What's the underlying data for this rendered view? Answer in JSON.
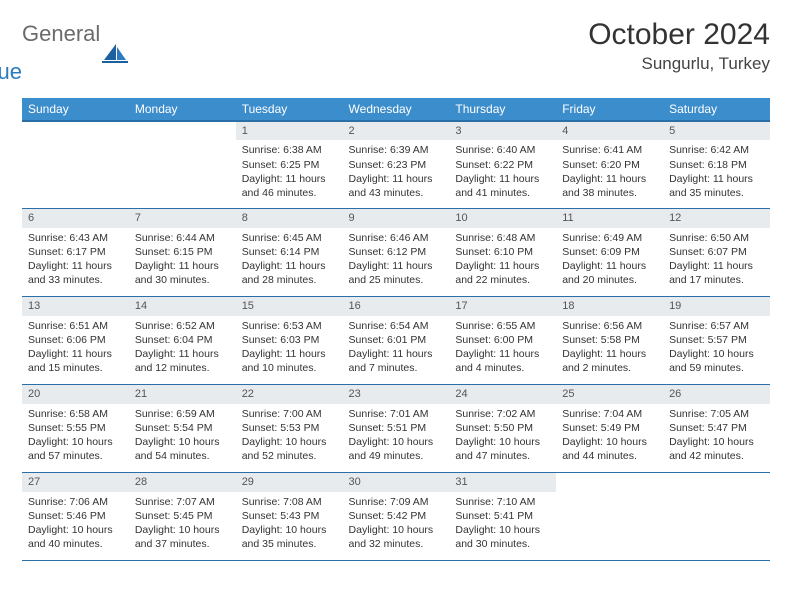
{
  "brand": {
    "part1": "General",
    "part2": "Blue"
  },
  "title": "October 2024",
  "location": "Sungurlu, Turkey",
  "colors": {
    "header_bg": "#3c8dcc",
    "header_border": "#2a6fa8",
    "daynum_bg": "#e8ebee",
    "text": "#333333",
    "brand_gray": "#6b6b6b",
    "brand_blue": "#2a7bbf"
  },
  "weekdays": [
    "Sunday",
    "Monday",
    "Tuesday",
    "Wednesday",
    "Thursday",
    "Friday",
    "Saturday"
  ],
  "startOffset": 2,
  "days": [
    {
      "n": 1,
      "sr": "6:38 AM",
      "ss": "6:25 PM",
      "dl": "11 hours and 46 minutes."
    },
    {
      "n": 2,
      "sr": "6:39 AM",
      "ss": "6:23 PM",
      "dl": "11 hours and 43 minutes."
    },
    {
      "n": 3,
      "sr": "6:40 AM",
      "ss": "6:22 PM",
      "dl": "11 hours and 41 minutes."
    },
    {
      "n": 4,
      "sr": "6:41 AM",
      "ss": "6:20 PM",
      "dl": "11 hours and 38 minutes."
    },
    {
      "n": 5,
      "sr": "6:42 AM",
      "ss": "6:18 PM",
      "dl": "11 hours and 35 minutes."
    },
    {
      "n": 6,
      "sr": "6:43 AM",
      "ss": "6:17 PM",
      "dl": "11 hours and 33 minutes."
    },
    {
      "n": 7,
      "sr": "6:44 AM",
      "ss": "6:15 PM",
      "dl": "11 hours and 30 minutes."
    },
    {
      "n": 8,
      "sr": "6:45 AM",
      "ss": "6:14 PM",
      "dl": "11 hours and 28 minutes."
    },
    {
      "n": 9,
      "sr": "6:46 AM",
      "ss": "6:12 PM",
      "dl": "11 hours and 25 minutes."
    },
    {
      "n": 10,
      "sr": "6:48 AM",
      "ss": "6:10 PM",
      "dl": "11 hours and 22 minutes."
    },
    {
      "n": 11,
      "sr": "6:49 AM",
      "ss": "6:09 PM",
      "dl": "11 hours and 20 minutes."
    },
    {
      "n": 12,
      "sr": "6:50 AM",
      "ss": "6:07 PM",
      "dl": "11 hours and 17 minutes."
    },
    {
      "n": 13,
      "sr": "6:51 AM",
      "ss": "6:06 PM",
      "dl": "11 hours and 15 minutes."
    },
    {
      "n": 14,
      "sr": "6:52 AM",
      "ss": "6:04 PM",
      "dl": "11 hours and 12 minutes."
    },
    {
      "n": 15,
      "sr": "6:53 AM",
      "ss": "6:03 PM",
      "dl": "11 hours and 10 minutes."
    },
    {
      "n": 16,
      "sr": "6:54 AM",
      "ss": "6:01 PM",
      "dl": "11 hours and 7 minutes."
    },
    {
      "n": 17,
      "sr": "6:55 AM",
      "ss": "6:00 PM",
      "dl": "11 hours and 4 minutes."
    },
    {
      "n": 18,
      "sr": "6:56 AM",
      "ss": "5:58 PM",
      "dl": "11 hours and 2 minutes."
    },
    {
      "n": 19,
      "sr": "6:57 AM",
      "ss": "5:57 PM",
      "dl": "10 hours and 59 minutes."
    },
    {
      "n": 20,
      "sr": "6:58 AM",
      "ss": "5:55 PM",
      "dl": "10 hours and 57 minutes."
    },
    {
      "n": 21,
      "sr": "6:59 AM",
      "ss": "5:54 PM",
      "dl": "10 hours and 54 minutes."
    },
    {
      "n": 22,
      "sr": "7:00 AM",
      "ss": "5:53 PM",
      "dl": "10 hours and 52 minutes."
    },
    {
      "n": 23,
      "sr": "7:01 AM",
      "ss": "5:51 PM",
      "dl": "10 hours and 49 minutes."
    },
    {
      "n": 24,
      "sr": "7:02 AM",
      "ss": "5:50 PM",
      "dl": "10 hours and 47 minutes."
    },
    {
      "n": 25,
      "sr": "7:04 AM",
      "ss": "5:49 PM",
      "dl": "10 hours and 44 minutes."
    },
    {
      "n": 26,
      "sr": "7:05 AM",
      "ss": "5:47 PM",
      "dl": "10 hours and 42 minutes."
    },
    {
      "n": 27,
      "sr": "7:06 AM",
      "ss": "5:46 PM",
      "dl": "10 hours and 40 minutes."
    },
    {
      "n": 28,
      "sr": "7:07 AM",
      "ss": "5:45 PM",
      "dl": "10 hours and 37 minutes."
    },
    {
      "n": 29,
      "sr": "7:08 AM",
      "ss": "5:43 PM",
      "dl": "10 hours and 35 minutes."
    },
    {
      "n": 30,
      "sr": "7:09 AM",
      "ss": "5:42 PM",
      "dl": "10 hours and 32 minutes."
    },
    {
      "n": 31,
      "sr": "7:10 AM",
      "ss": "5:41 PM",
      "dl": "10 hours and 30 minutes."
    }
  ],
  "labels": {
    "sunrise": "Sunrise:",
    "sunset": "Sunset:",
    "daylight": "Daylight:"
  }
}
